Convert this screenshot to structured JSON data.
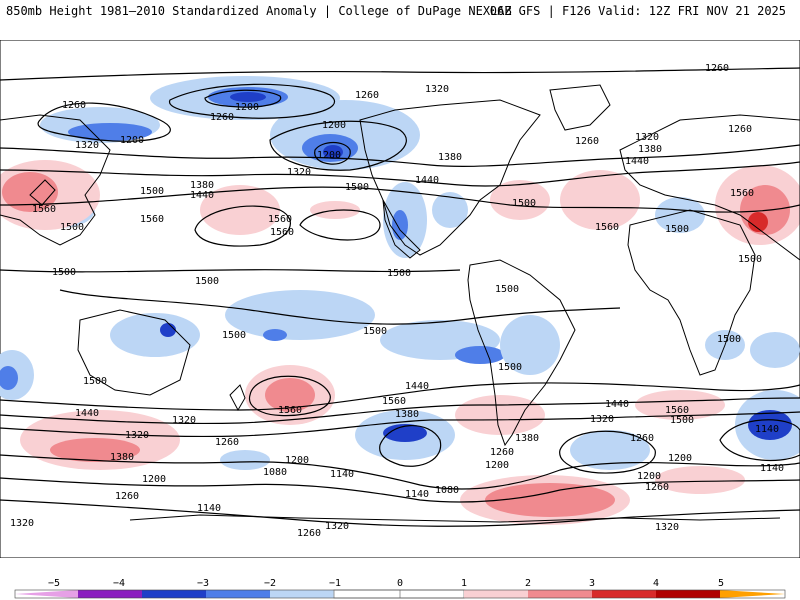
{
  "header": {
    "title": "850mb Height 1981–2010 Standardized Anomaly | College of DuPage NEXLAB",
    "run_info": "06Z GFS | F126 Valid: 12Z FRI NOV 21 2025"
  },
  "colors": {
    "neg5": "#e6a0e6",
    "neg4": "#8a1fbf",
    "neg3": "#1f3fc8",
    "neg2": "#4f7ee8",
    "neg1": "#bcd6f5",
    "pos1": "#f9d0d3",
    "pos2": "#f08a8f",
    "pos3": "#d82a2a",
    "pos4": "#b00000",
    "pos5": "#ffa000"
  },
  "colorbar": {
    "labels": [
      "−5",
      "−4",
      "−3",
      "−2",
      "−1",
      "0",
      "1",
      "2",
      "3",
      "4",
      "5"
    ]
  },
  "contour_labels": [
    "1260",
    "1260",
    "1200",
    "1260",
    "1200",
    "1320",
    "1200",
    "1260",
    "1320",
    "1200",
    "1260",
    "1320",
    "1380",
    "1260",
    "1320",
    "1380",
    "1440",
    "1500",
    "1560",
    "1380",
    "1440",
    "1500",
    "1440",
    "1560",
    "1560",
    "1500",
    "1560",
    "1560",
    "1500",
    "1560",
    "1500",
    "1500",
    "1500",
    "1500",
    "1500",
    "1500",
    "1500",
    "1500",
    "1500",
    "1500",
    "1440",
    "1560",
    "1560",
    "1500",
    "1320",
    "1380",
    "1440",
    "1320",
    "1380",
    "1260",
    "1200",
    "1140",
    "1320",
    "1260",
    "1200",
    "1140",
    "1080",
    "1080",
    "1140",
    "1200",
    "1260",
    "1320",
    "1380",
    "1440",
    "1500",
    "1560",
    "1320",
    "1260",
    "1200",
    "1140",
    "1260",
    "1200",
    "1140",
    "1260",
    "1320"
  ]
}
